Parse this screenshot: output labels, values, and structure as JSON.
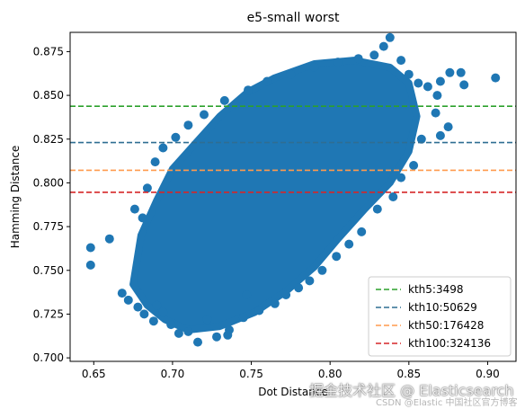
{
  "chart_data": {
    "type": "scatter",
    "title": "e5-small worst",
    "xlabel": "Dot Distance",
    "ylabel": "Hamming Distance",
    "xlim": [
      0.635,
      0.918
    ],
    "ylim": [
      0.698,
      0.886
    ],
    "xticks": [
      0.65,
      0.7,
      0.75,
      0.8,
      0.85,
      0.9
    ],
    "xtick_labels": [
      "0.65",
      "0.70",
      "0.75",
      "0.80",
      "0.85",
      "0.90"
    ],
    "yticks": [
      0.7,
      0.725,
      0.75,
      0.775,
      0.8,
      0.825,
      0.85,
      0.875
    ],
    "ytick_labels": [
      "0.700",
      "0.725",
      "0.750",
      "0.775",
      "0.800",
      "0.825",
      "0.850",
      "0.875"
    ],
    "grid": false,
    "legend_position": "lower-right",
    "scatter_color": "#1f77b4",
    "cloud_shape": {
      "description_points": "approximate boundary of the dense point cloud (dot distance, hamming distance)",
      "outline": [
        [
          0.675,
          0.742
        ],
        [
          0.68,
          0.77
        ],
        [
          0.69,
          0.79
        ],
        [
          0.7,
          0.808
        ],
        [
          0.715,
          0.823
        ],
        [
          0.73,
          0.838
        ],
        [
          0.748,
          0.852
        ],
        [
          0.765,
          0.86
        ],
        [
          0.79,
          0.868
        ],
        [
          0.815,
          0.87
        ],
        [
          0.838,
          0.866
        ],
        [
          0.85,
          0.857
        ],
        [
          0.855,
          0.838
        ],
        [
          0.85,
          0.818
        ],
        [
          0.838,
          0.8
        ],
        [
          0.822,
          0.785
        ],
        [
          0.805,
          0.768
        ],
        [
          0.79,
          0.752
        ],
        [
          0.772,
          0.738
        ],
        [
          0.752,
          0.726
        ],
        [
          0.73,
          0.718
        ],
        [
          0.71,
          0.716
        ],
        [
          0.695,
          0.722
        ],
        [
          0.684,
          0.73
        ]
      ]
    },
    "outlier_points": [
      [
        0.648,
        0.763
      ],
      [
        0.648,
        0.753
      ],
      [
        0.66,
        0.768
      ],
      [
        0.668,
        0.737
      ],
      [
        0.672,
        0.733
      ],
      [
        0.678,
        0.729
      ],
      [
        0.682,
        0.725
      ],
      [
        0.688,
        0.721
      ],
      [
        0.694,
        0.726
      ],
      [
        0.699,
        0.719
      ],
      [
        0.704,
        0.714
      ],
      [
        0.71,
        0.715
      ],
      [
        0.716,
        0.709
      ],
      [
        0.722,
        0.722
      ],
      [
        0.735,
        0.713
      ],
      [
        0.745,
        0.723
      ],
      [
        0.747,
        0.736
      ],
      [
        0.676,
        0.785
      ],
      [
        0.681,
        0.78
      ],
      [
        0.684,
        0.797
      ],
      [
        0.689,
        0.812
      ],
      [
        0.694,
        0.82
      ],
      [
        0.702,
        0.826
      ],
      [
        0.71,
        0.833
      ],
      [
        0.72,
        0.839
      ],
      [
        0.733,
        0.847
      ],
      [
        0.748,
        0.853
      ],
      [
        0.76,
        0.858
      ],
      [
        0.775,
        0.862
      ],
      [
        0.79,
        0.866
      ],
      [
        0.805,
        0.869
      ],
      [
        0.818,
        0.871
      ],
      [
        0.828,
        0.873
      ],
      [
        0.834,
        0.878
      ],
      [
        0.838,
        0.883
      ],
      [
        0.845,
        0.87
      ],
      [
        0.85,
        0.862
      ],
      [
        0.856,
        0.857
      ],
      [
        0.862,
        0.855
      ],
      [
        0.868,
        0.85
      ],
      [
        0.87,
        0.858
      ],
      [
        0.876,
        0.863
      ],
      [
        0.883,
        0.863
      ],
      [
        0.885,
        0.856
      ],
      [
        0.867,
        0.84
      ],
      [
        0.875,
        0.832
      ],
      [
        0.858,
        0.825
      ],
      [
        0.87,
        0.827
      ],
      [
        0.853,
        0.81
      ],
      [
        0.845,
        0.803
      ],
      [
        0.84,
        0.792
      ],
      [
        0.83,
        0.785
      ],
      [
        0.82,
        0.772
      ],
      [
        0.812,
        0.765
      ],
      [
        0.804,
        0.758
      ],
      [
        0.795,
        0.75
      ],
      [
        0.787,
        0.744
      ],
      [
        0.78,
        0.74
      ],
      [
        0.772,
        0.736
      ],
      [
        0.765,
        0.731
      ],
      [
        0.755,
        0.727
      ],
      [
        0.905,
        0.86
      ],
      [
        0.69,
        0.73
      ],
      [
        0.736,
        0.716
      ],
      [
        0.728,
        0.712
      ]
    ],
    "reference_lines": [
      {
        "label": "kth5:3498",
        "y": 0.8438,
        "color": "#2ca02c"
      },
      {
        "label": "kth10:50629",
        "y": 0.823,
        "color": "#2f6e92"
      },
      {
        "label": "kth50:176428",
        "y": 0.8072,
        "color": "#ff9a4d"
      },
      {
        "label": "kth100:324136",
        "y": 0.7946,
        "color": "#d62728"
      }
    ]
  },
  "watermark": {
    "main": "掘金技术社区 @ Elasticsearch",
    "sub": "CSDN @Elastic 中国社区官方博客"
  }
}
